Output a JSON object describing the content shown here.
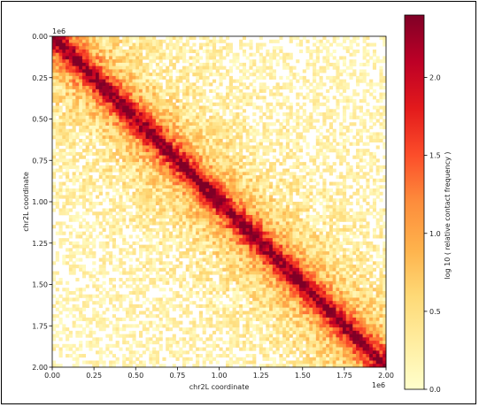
{
  "chart_data": {
    "type": "heatmap",
    "title": "",
    "xlabel": "chr2L coordinate",
    "ylabel": "chr2L coordinate",
    "x_range": [
      0,
      2000000
    ],
    "y_range": [
      0,
      2000000
    ],
    "y_inverted": true,
    "x_offset_label": "1e6",
    "y_offset_label": "1e6",
    "x_ticks": [
      {
        "value": 0,
        "label": "0.00"
      },
      {
        "value": 250000,
        "label": "0.25"
      },
      {
        "value": 500000,
        "label": "0.50"
      },
      {
        "value": 750000,
        "label": "0.75"
      },
      {
        "value": 1000000,
        "label": "1.00"
      },
      {
        "value": 1250000,
        "label": "1.25"
      },
      {
        "value": 1500000,
        "label": "1.50"
      },
      {
        "value": 1750000,
        "label": "1.75"
      },
      {
        "value": 2000000,
        "label": "2.00"
      }
    ],
    "y_ticks": [
      {
        "value": 0,
        "label": "0.00"
      },
      {
        "value": 250000,
        "label": "0.25"
      },
      {
        "value": 500000,
        "label": "0.50"
      },
      {
        "value": 750000,
        "label": "0.75"
      },
      {
        "value": 1000000,
        "label": "1.00"
      },
      {
        "value": 1250000,
        "label": "1.25"
      },
      {
        "value": 1500000,
        "label": "1.50"
      },
      {
        "value": 1750000,
        "label": "1.75"
      },
      {
        "value": 2000000,
        "label": "2.00"
      }
    ],
    "bins": 100,
    "colormap": "YlOrRd",
    "colormap_stops": [
      "#ffffcc",
      "#ffeda0",
      "#fed976",
      "#feb24c",
      "#fd8d3c",
      "#fc4e2a",
      "#e31a1c",
      "#bd0026",
      "#800026"
    ],
    "value_range": [
      0.0,
      2.4
    ],
    "diagonal_value": 2.3,
    "colorbar": {
      "label": "log 10 ( relative contact frequency )",
      "range": [
        0.0,
        2.4
      ],
      "ticks": [
        {
          "value": 0.0,
          "label": "0.0"
        },
        {
          "value": 0.5,
          "label": "0.5"
        },
        {
          "value": 1.0,
          "label": "1.0"
        },
        {
          "value": 1.5,
          "label": "1.5"
        },
        {
          "value": 2.0,
          "label": "2.0"
        }
      ]
    }
  }
}
